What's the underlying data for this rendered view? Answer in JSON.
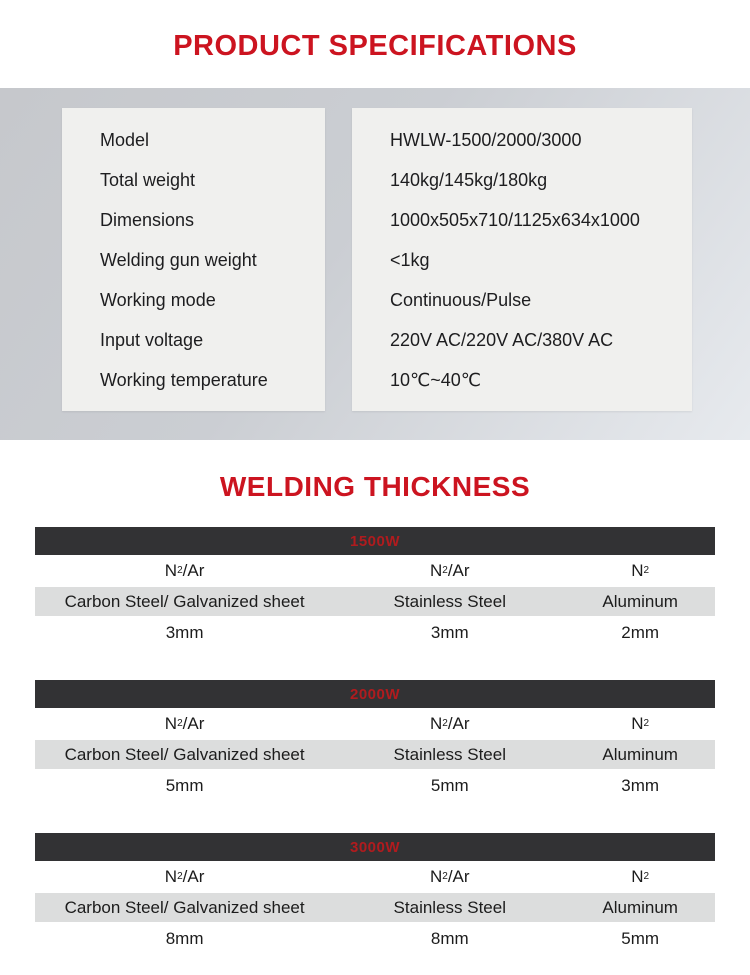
{
  "header": {
    "title": "PRODUCT SPECIFICATIONS"
  },
  "specs": {
    "rows": [
      {
        "label": "Model",
        "value": "HWLW-1500/2000/3000"
      },
      {
        "label": "Total weight",
        "value": "140kg/145kg/180kg"
      },
      {
        "label": "Dimensions",
        "value": "1000x505x710/1125x634x1000"
      },
      {
        "label": "Welding gun weight",
        "value": "<1kg"
      },
      {
        "label": "Working mode",
        "value": "Continuous/Pulse"
      },
      {
        "label": "Input voltage",
        "value": "220V AC/220V AC/380V AC"
      },
      {
        "label": "Working temperature",
        "value": "10℃~40℃"
      }
    ]
  },
  "thickness": {
    "heading": "WELDING THICKNESS",
    "tables": [
      {
        "power": "1500W",
        "gas": [
          {
            "n": "N",
            "sub": "2",
            "rest": "/Ar"
          },
          {
            "n": "N",
            "sub": "2",
            "rest": "/Ar"
          },
          {
            "n": "N",
            "sub": "2",
            "rest": ""
          }
        ],
        "materials": [
          "Carbon Steel/ Galvanized sheet",
          "Stainless Steel",
          "Aluminum"
        ],
        "values": [
          "3mm",
          "3mm",
          "2mm"
        ]
      },
      {
        "power": "2000W",
        "gas": [
          {
            "n": "N",
            "sub": "2",
            "rest": "/Ar"
          },
          {
            "n": "N",
            "sub": "2",
            "rest": "/Ar"
          },
          {
            "n": "N",
            "sub": "2",
            "rest": ""
          }
        ],
        "materials": [
          "Carbon Steel/ Galvanized sheet",
          "Stainless Steel",
          "Aluminum"
        ],
        "values": [
          "5mm",
          "5mm",
          "3mm"
        ]
      },
      {
        "power": "3000W",
        "gas": [
          {
            "n": "N",
            "sub": "2",
            "rest": "/Ar"
          },
          {
            "n": "N",
            "sub": "2",
            "rest": "/Ar"
          },
          {
            "n": "N",
            "sub": "2",
            "rest": ""
          }
        ],
        "materials": [
          "Carbon Steel/ Galvanized sheet",
          "Stainless Steel",
          "Aluminum"
        ],
        "values": [
          "8mm",
          "8mm",
          "5mm"
        ]
      }
    ]
  },
  "colors": {
    "accent_red": "#cc1420",
    "bar_background": "#323234",
    "bar_text": "#b01b1e",
    "panel_background": "#f0f0ee",
    "section_gradient_start": "#c6c8cc",
    "section_gradient_end": "#e7eaee",
    "material_row_background": "#dcdddd",
    "text": "#1c1c1c"
  }
}
